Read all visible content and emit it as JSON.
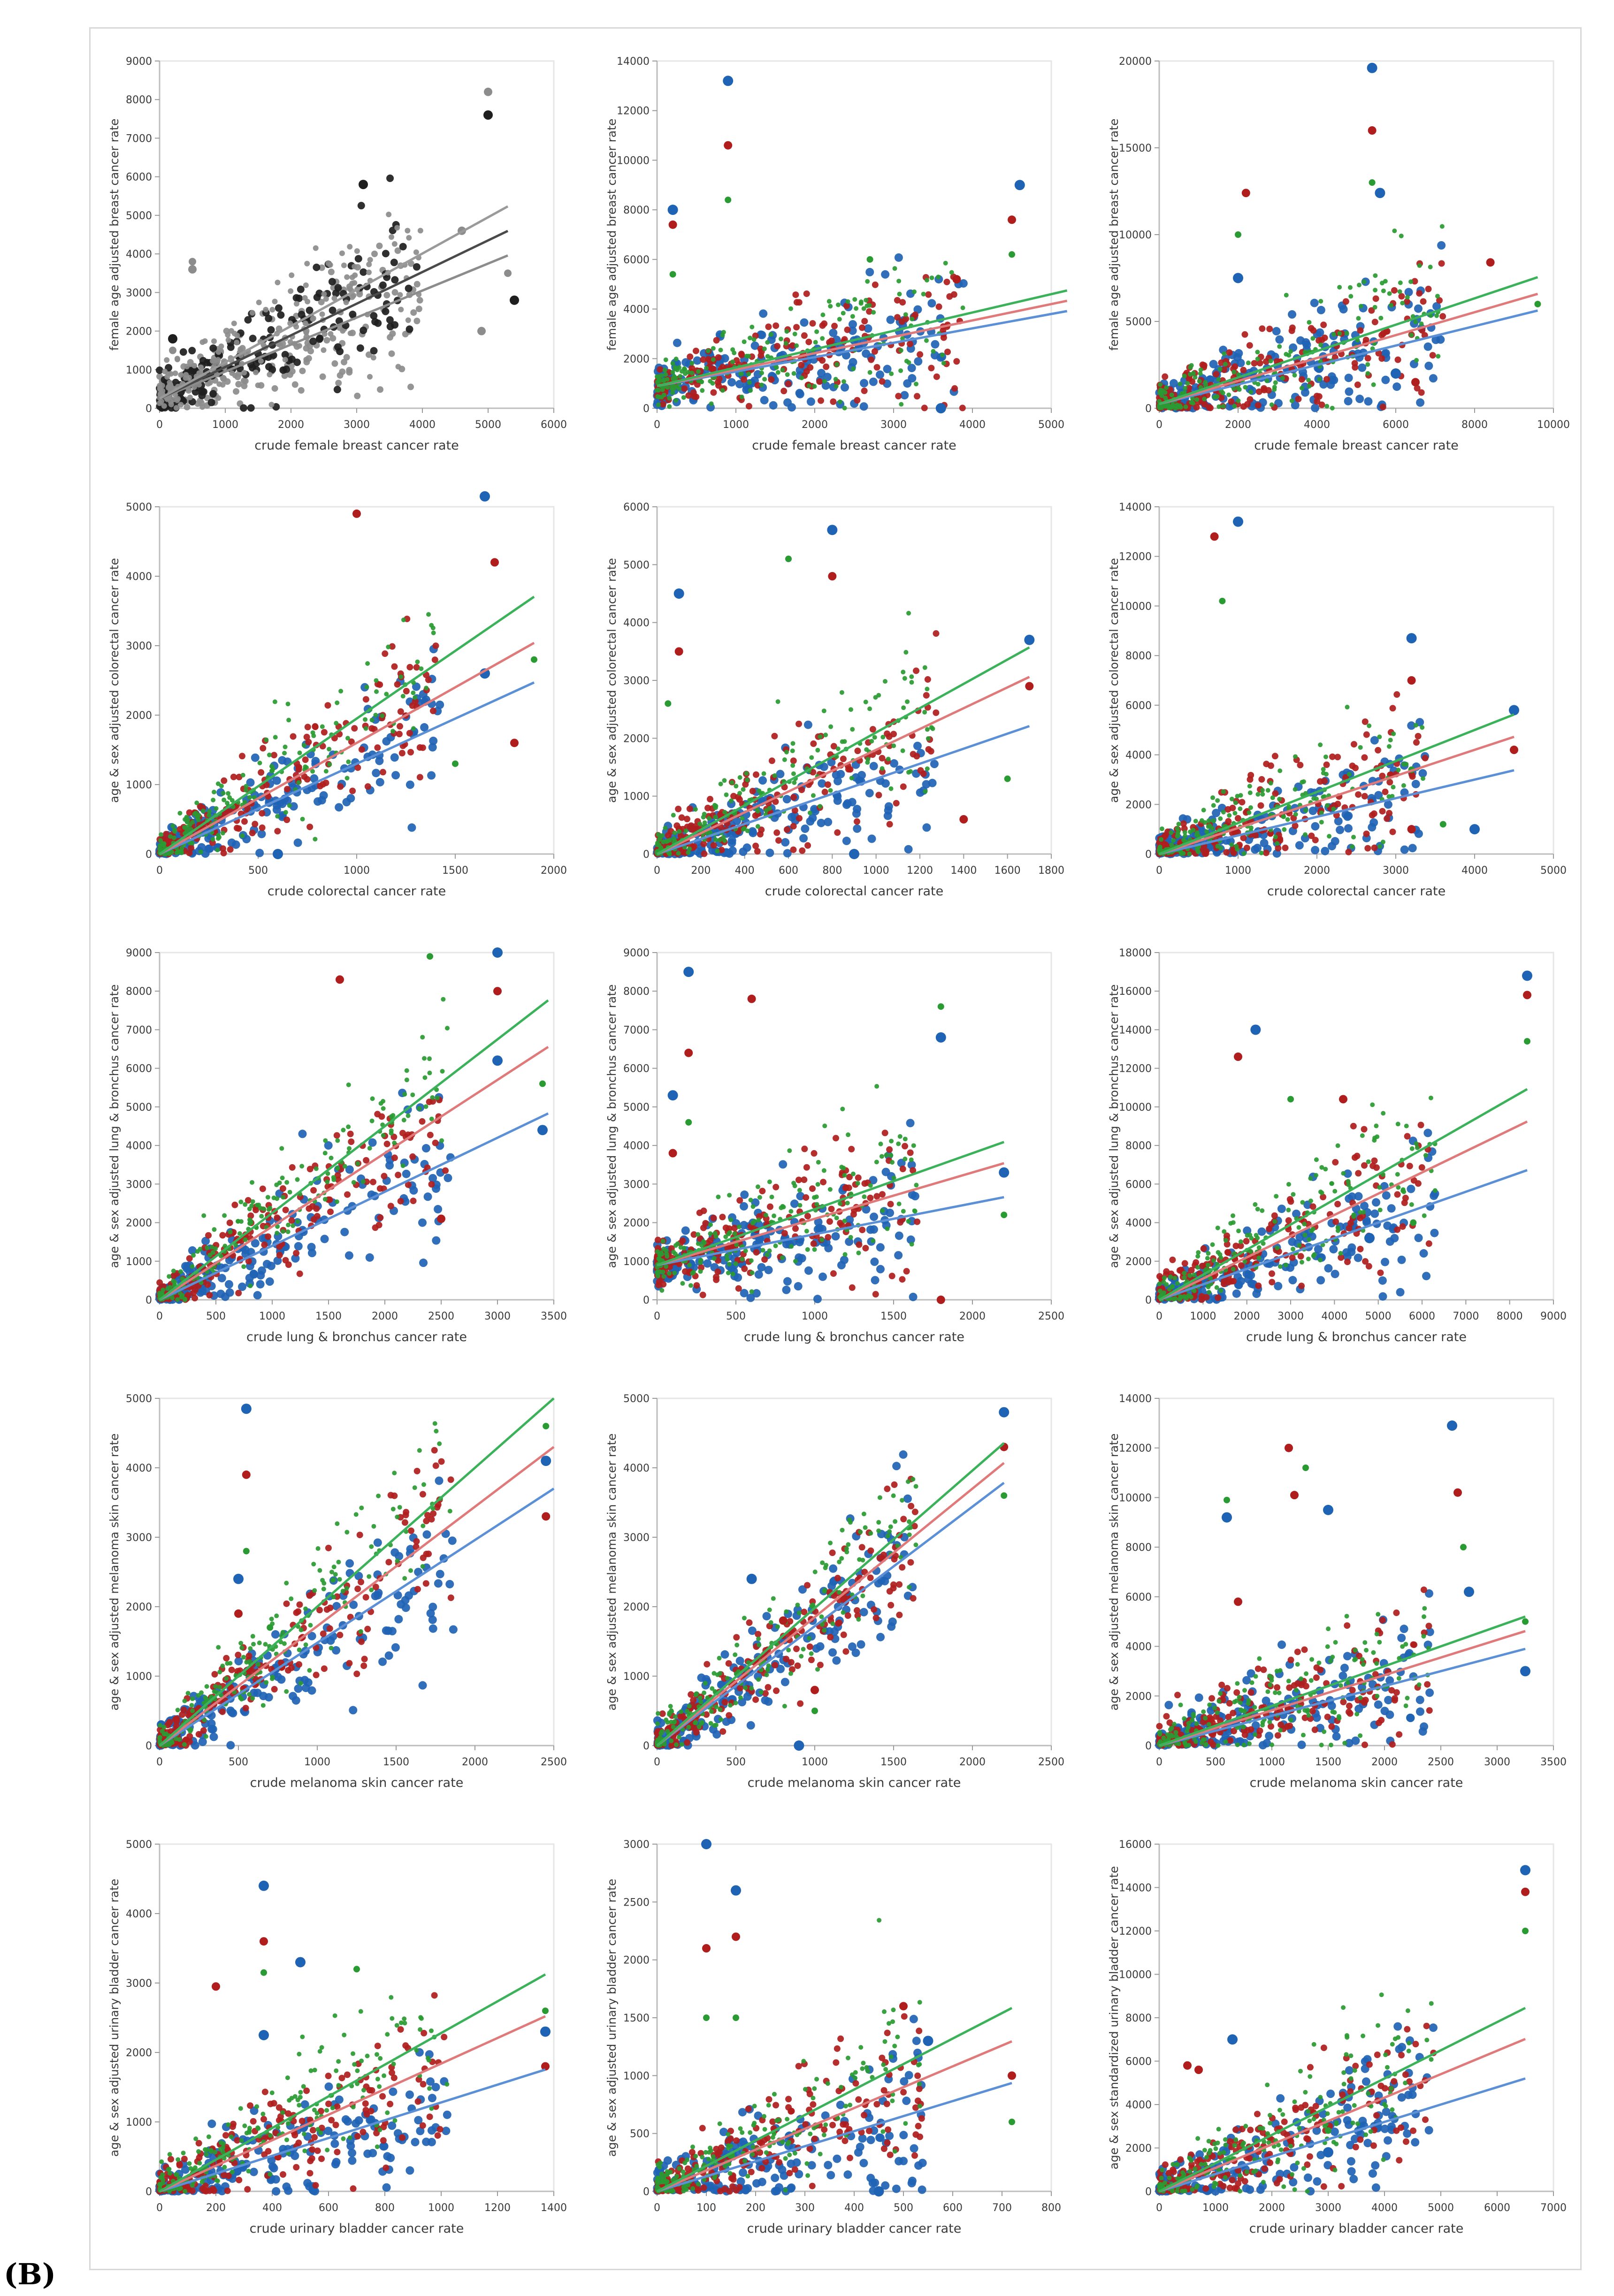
{
  "figure": {
    "panel_label": "(B)",
    "series_colors": {
      "black_gray": "#1e1e1e",
      "gray": "#8c8c8c",
      "blue": "#1f63b5",
      "red": "#b01d1d",
      "green": "#2a9a32",
      "blue_line": "#5b8fd6",
      "red_line": "#e07a7a",
      "green_line": "#3bb25a"
    }
  },
  "chart_data": [
    {
      "id": "breast-1",
      "type": "scatter",
      "variant": "gray",
      "xlabel": "crude female breast cancer rate",
      "ylabel": "female age adjusted breast cancer rate",
      "xlim": [
        0,
        6000
      ],
      "ylim": [
        0,
        9000
      ],
      "xticks": [
        0,
        1000,
        2000,
        3000,
        4000,
        5000,
        6000
      ],
      "yticks": [
        0,
        1000,
        2000,
        3000,
        4000,
        5000,
        6000,
        7000,
        8000,
        9000
      ],
      "trend_slopes": [
        0.7,
        0.82,
        0.94
      ],
      "trend_intercept": 250,
      "x_extent": 5300,
      "outliers": [
        [
          5000,
          8200
        ],
        [
          5000,
          7600
        ],
        [
          500,
          3800
        ],
        [
          500,
          3600
        ],
        [
          200,
          1800
        ],
        [
          200,
          1500
        ],
        [
          4600,
          4600
        ],
        [
          3100,
          5800
        ],
        [
          5300,
          3500
        ],
        [
          4900,
          2000
        ],
        [
          5400,
          2800
        ]
      ]
    },
    {
      "id": "breast-2",
      "type": "scatter",
      "variant": "rgb",
      "xlabel": "crude female breast cancer rate",
      "ylabel": "female age adjusted breast cancer rate",
      "xlim": [
        0,
        5000
      ],
      "ylim": [
        0,
        14000
      ],
      "xticks": [
        0,
        1000,
        2000,
        3000,
        4000,
        5000
      ],
      "yticks": [
        0,
        2000,
        4000,
        6000,
        8000,
        10000,
        12000,
        14000
      ],
      "trend_slopes": [
        0.58,
        0.66,
        0.74
      ],
      "trend_intercept": 900,
      "x_extent": 5200,
      "outliers": [
        [
          900,
          13200
        ],
        [
          900,
          10600
        ],
        [
          900,
          8400
        ],
        [
          200,
          8000
        ],
        [
          200,
          7400
        ],
        [
          200,
          5400
        ],
        [
          4600,
          9000
        ],
        [
          4500,
          7600
        ],
        [
          4500,
          6200
        ],
        [
          3600,
          0
        ],
        [
          3800,
          5200
        ],
        [
          2700,
          6000
        ]
      ]
    },
    {
      "id": "breast-3",
      "type": "scatter",
      "variant": "rgb",
      "xlabel": "crude female breast cancer rate",
      "ylabel": "female age adjusted breast cancer rate",
      "xlim": [
        0,
        10000
      ],
      "ylim": [
        0,
        20000
      ],
      "xticks": [
        0,
        2000,
        4000,
        6000,
        8000,
        10000
      ],
      "yticks": [
        0,
        5000,
        10000,
        15000,
        20000
      ],
      "trend_slopes": [
        0.56,
        0.66,
        0.76
      ],
      "trend_intercept": 250,
      "x_extent": 9600,
      "outliers": [
        [
          5400,
          19600
        ],
        [
          5400,
          16000
        ],
        [
          5400,
          13000
        ],
        [
          5600,
          12400
        ],
        [
          2200,
          12400
        ],
        [
          2000,
          10000
        ],
        [
          2000,
          7500
        ],
        [
          8400,
          8400
        ],
        [
          9600,
          6000
        ],
        [
          6000,
          2000
        ],
        [
          6500,
          1500
        ]
      ]
    },
    {
      "id": "colorectal-1",
      "type": "scatter",
      "variant": "rgb",
      "xlabel": "crude colorectal cancer rate",
      "ylabel": "age & sex adjusted colorectal cancer rate",
      "xlim": [
        0,
        2000
      ],
      "ylim": [
        0,
        5000
      ],
      "xticks": [
        0,
        500,
        1000,
        1500,
        2000
      ],
      "yticks": [
        0,
        1000,
        2000,
        3000,
        4000,
        5000
      ],
      "trend_slopes": [
        1.3,
        1.6,
        1.95
      ],
      "trend_intercept": 0,
      "x_extent": 1900,
      "outliers": [
        [
          1650,
          5150
        ],
        [
          1700,
          4200
        ],
        [
          1900,
          2800
        ],
        [
          1650,
          2600
        ],
        [
          1000,
          4900
        ],
        [
          1500,
          1300
        ],
        [
          600,
          0
        ],
        [
          1800,
          1600
        ]
      ]
    },
    {
      "id": "colorectal-2",
      "type": "scatter",
      "variant": "rgb",
      "xlabel": "crude colorectal cancer rate",
      "ylabel": "age & sex adjusted colorectal cancer rate",
      "xlim": [
        0,
        1800
      ],
      "ylim": [
        0,
        6000
      ],
      "xticks": [
        0,
        200,
        400,
        600,
        800,
        1000,
        1200,
        1400,
        1600,
        1800
      ],
      "yticks": [
        0,
        1000,
        2000,
        3000,
        4000,
        5000,
        6000
      ],
      "trend_slopes": [
        1.3,
        1.8,
        2.1
      ],
      "trend_intercept": 0,
      "x_extent": 1700,
      "outliers": [
        [
          800,
          5600
        ],
        [
          800,
          4800
        ],
        [
          600,
          5100
        ],
        [
          100,
          4500
        ],
        [
          100,
          3500
        ],
        [
          50,
          2600
        ],
        [
          1700,
          3700
        ],
        [
          1700,
          2900
        ],
        [
          1600,
          1300
        ],
        [
          900,
          0
        ],
        [
          1400,
          600
        ]
      ]
    },
    {
      "id": "colorectal-3",
      "type": "scatter",
      "variant": "rgb",
      "xlabel": "crude colorectal cancer rate",
      "ylabel": "age & sex adjusted colorectal cancer rate",
      "xlim": [
        0,
        5000
      ],
      "ylim": [
        0,
        14000
      ],
      "xticks": [
        0,
        1000,
        2000,
        3000,
        4000,
        5000
      ],
      "yticks": [
        0,
        2000,
        4000,
        6000,
        8000,
        10000,
        12000,
        14000
      ],
      "trend_slopes": [
        0.75,
        1.05,
        1.25
      ],
      "trend_intercept": 0,
      "x_extent": 4500,
      "outliers": [
        [
          1000,
          13400
        ],
        [
          700,
          12800
        ],
        [
          800,
          10200
        ],
        [
          3200,
          8700
        ],
        [
          3200,
          7000
        ],
        [
          3200,
          3400
        ],
        [
          4500,
          5800
        ],
        [
          4500,
          4200
        ],
        [
          3600,
          1200
        ],
        [
          4000,
          1000
        ],
        [
          3200,
          1000
        ]
      ]
    },
    {
      "id": "lung-1",
      "type": "scatter",
      "variant": "rgb",
      "xlabel": "crude lung & bronchus cancer rate",
      "ylabel": "age & sex adjusted lung & bronchus cancer rate",
      "xlim": [
        0,
        3500
      ],
      "ylim": [
        0,
        9000
      ],
      "xticks": [
        0,
        500,
        1000,
        1500,
        2000,
        2500,
        3000,
        3500
      ],
      "yticks": [
        0,
        1000,
        2000,
        3000,
        4000,
        5000,
        6000,
        7000,
        8000,
        9000
      ],
      "trend_slopes": [
        1.4,
        1.9,
        2.25
      ],
      "trend_intercept": 0,
      "x_extent": 3450,
      "outliers": [
        [
          3000,
          9000
        ],
        [
          3000,
          8000
        ],
        [
          3400,
          5600
        ],
        [
          3400,
          4400
        ],
        [
          1600,
          8300
        ],
        [
          2400,
          8900
        ],
        [
          3000,
          6200
        ],
        [
          2500,
          2100
        ]
      ]
    },
    {
      "id": "lung-2",
      "type": "scatter",
      "variant": "rgb",
      "xlabel": "crude lung & bronchus cancer rate",
      "ylabel": "age & sex adjusted lung & bronchus cancer rate",
      "xlim": [
        0,
        2500
      ],
      "ylim": [
        0,
        9000
      ],
      "xticks": [
        0,
        500,
        1000,
        1500,
        2000,
        2500
      ],
      "yticks": [
        0,
        1000,
        2000,
        3000,
        4000,
        5000,
        6000,
        7000,
        8000,
        9000
      ],
      "trend_slopes": [
        0.8,
        1.2,
        1.45
      ],
      "trend_intercept": 900,
      "x_extent": 2200,
      "outliers": [
        [
          200,
          8500
        ],
        [
          200,
          6400
        ],
        [
          200,
          4600
        ],
        [
          100,
          5300
        ],
        [
          100,
          3800
        ],
        [
          1800,
          7600
        ],
        [
          1800,
          6800
        ],
        [
          1800,
          0
        ],
        [
          2200,
          2200
        ],
        [
          2200,
          3300
        ],
        [
          600,
          7800
        ]
      ]
    },
    {
      "id": "lung-3",
      "type": "scatter",
      "variant": "rgb",
      "xlabel": "crude lung & bronchus cancer rate",
      "ylabel": "age & sex adjusted lung & bronchus cancer rate",
      "xlim": [
        0,
        9000
      ],
      "ylim": [
        0,
        18000
      ],
      "xticks": [
        0,
        1000,
        2000,
        3000,
        4000,
        5000,
        6000,
        7000,
        8000,
        9000
      ],
      "yticks": [
        0,
        2000,
        4000,
        6000,
        8000,
        10000,
        12000,
        14000,
        16000,
        18000
      ],
      "trend_slopes": [
        0.8,
        1.1,
        1.3
      ],
      "trend_intercept": 0,
      "x_extent": 8400,
      "outliers": [
        [
          8400,
          16800
        ],
        [
          8400,
          15800
        ],
        [
          8400,
          13400
        ],
        [
          2200,
          14000
        ],
        [
          1800,
          12600
        ],
        [
          5800,
          4000
        ],
        [
          4800,
          3200
        ],
        [
          4200,
          10400
        ],
        [
          3000,
          10400
        ]
      ]
    },
    {
      "id": "melanoma-1",
      "type": "scatter",
      "variant": "rgb",
      "xlabel": "crude melanoma skin cancer rate",
      "ylabel": "age & sex adjusted melanoma skin cancer rate",
      "xlim": [
        0,
        2500
      ],
      "ylim": [
        0,
        5000
      ],
      "xticks": [
        0,
        500,
        1000,
        1500,
        2000,
        2500
      ],
      "yticks": [
        0,
        1000,
        2000,
        3000,
        4000,
        5000
      ],
      "trend_slopes": [
        1.48,
        1.72,
        2.0
      ],
      "trend_intercept": 0,
      "x_extent": 2500,
      "outliers": [
        [
          550,
          4850
        ],
        [
          550,
          3900
        ],
        [
          550,
          2800
        ],
        [
          500,
          2400
        ],
        [
          500,
          1900
        ],
        [
          2450,
          4600
        ],
        [
          2450,
          4100
        ],
        [
          2450,
          3300
        ],
        [
          700,
          1700
        ]
      ]
    },
    {
      "id": "melanoma-2",
      "type": "scatter",
      "variant": "rgb",
      "xlabel": "crude melanoma skin cancer rate",
      "ylabel": "age & sex adjusted melanoma skin cancer rate",
      "xlim": [
        0,
        2500
      ],
      "ylim": [
        0,
        5000
      ],
      "xticks": [
        0,
        500,
        1000,
        1500,
        2000,
        2500
      ],
      "yticks": [
        0,
        1000,
        2000,
        3000,
        4000,
        5000
      ],
      "trend_slopes": [
        1.72,
        1.85,
        1.98
      ],
      "trend_intercept": 0,
      "x_extent": 2200,
      "outliers": [
        [
          2200,
          4800
        ],
        [
          2200,
          4300
        ],
        [
          2200,
          3600
        ],
        [
          900,
          0
        ],
        [
          1000,
          800
        ],
        [
          1000,
          500
        ],
        [
          600,
          2400
        ],
        [
          800,
          1800
        ]
      ]
    },
    {
      "id": "melanoma-3",
      "type": "scatter",
      "variant": "rgb",
      "xlabel": "crude melanoma skin cancer rate",
      "ylabel": "age & sex adjusted melanoma skin cancer rate",
      "xlim": [
        0,
        3500
      ],
      "ylim": [
        0,
        14000
      ],
      "xticks": [
        0,
        500,
        1000,
        1500,
        2000,
        2500,
        3000,
        3500
      ],
      "yticks": [
        0,
        2000,
        4000,
        6000,
        8000,
        10000,
        12000,
        14000
      ],
      "trend_slopes": [
        1.2,
        1.42,
        1.6
      ],
      "trend_intercept": 0,
      "x_extent": 3250,
      "outliers": [
        [
          2600,
          12900
        ],
        [
          2650,
          10200
        ],
        [
          2700,
          8000
        ],
        [
          2750,
          6200
        ],
        [
          1150,
          12000
        ],
        [
          1300,
          11200
        ],
        [
          1500,
          9500
        ],
        [
          1200,
          10100
        ],
        [
          600,
          9900
        ],
        [
          600,
          9200
        ],
        [
          700,
          5800
        ],
        [
          3250,
          5000
        ],
        [
          3250,
          3000
        ]
      ]
    },
    {
      "id": "bladder-1",
      "type": "scatter",
      "variant": "rgb",
      "xlabel": "crude urinary bladder cancer rate",
      "ylabel": "age & sex adjusted urinary bladder cancer rate",
      "xlim": [
        0,
        1400
      ],
      "ylim": [
        0,
        5000
      ],
      "xticks": [
        0,
        200,
        400,
        600,
        800,
        1000,
        1200,
        1400
      ],
      "yticks": [
        0,
        1000,
        2000,
        3000,
        4000,
        5000
      ],
      "trend_slopes": [
        1.28,
        1.84,
        2.28
      ],
      "trend_intercept": 0,
      "x_extent": 1370,
      "outliers": [
        [
          370,
          4400
        ],
        [
          370,
          3600
        ],
        [
          370,
          3150
        ],
        [
          370,
          2250
        ],
        [
          200,
          2950
        ],
        [
          1370,
          2600
        ],
        [
          1370,
          2300
        ],
        [
          1370,
          1800
        ],
        [
          700,
          3200
        ],
        [
          500,
          3300
        ]
      ]
    },
    {
      "id": "bladder-2",
      "type": "scatter",
      "variant": "rgb",
      "xlabel": "crude urinary bladder cancer rate",
      "ylabel": "age & sex adjusted urinary bladder cancer rate",
      "xlim": [
        0,
        800
      ],
      "ylim": [
        0,
        3000
      ],
      "xticks": [
        0,
        100,
        200,
        300,
        400,
        500,
        600,
        700,
        800
      ],
      "yticks": [
        0,
        500,
        1000,
        1500,
        2000,
        2500,
        3000
      ],
      "trend_slopes": [
        1.3,
        1.8,
        2.2
      ],
      "trend_intercept": 0,
      "x_extent": 720,
      "outliers": [
        [
          100,
          3000
        ],
        [
          100,
          2100
        ],
        [
          100,
          1500
        ],
        [
          160,
          2600
        ],
        [
          160,
          2200
        ],
        [
          160,
          1500
        ],
        [
          450,
          0
        ],
        [
          720,
          1000
        ],
        [
          720,
          600
        ],
        [
          550,
          1300
        ],
        [
          500,
          1600
        ]
      ]
    },
    {
      "id": "bladder-3",
      "type": "scatter",
      "variant": "rgb",
      "xlabel": "crude urinary bladder cancer rate",
      "ylabel": "age & sex standardized urinary bladder cancer rate",
      "xlim": [
        0,
        7000
      ],
      "ylim": [
        0,
        16000
      ],
      "xticks": [
        0,
        1000,
        2000,
        3000,
        4000,
        5000,
        6000,
        7000
      ],
      "yticks": [
        0,
        2000,
        4000,
        6000,
        8000,
        10000,
        12000,
        14000,
        16000
      ],
      "trend_slopes": [
        0.8,
        1.08,
        1.3
      ],
      "trend_intercept": 0,
      "x_extent": 6500,
      "outliers": [
        [
          6500,
          14800
        ],
        [
          6500,
          13800
        ],
        [
          6500,
          12000
        ],
        [
          1300,
          7000
        ],
        [
          700,
          5600
        ],
        [
          3000,
          2800
        ],
        [
          3000,
          1800
        ],
        [
          500,
          5800
        ]
      ]
    }
  ]
}
